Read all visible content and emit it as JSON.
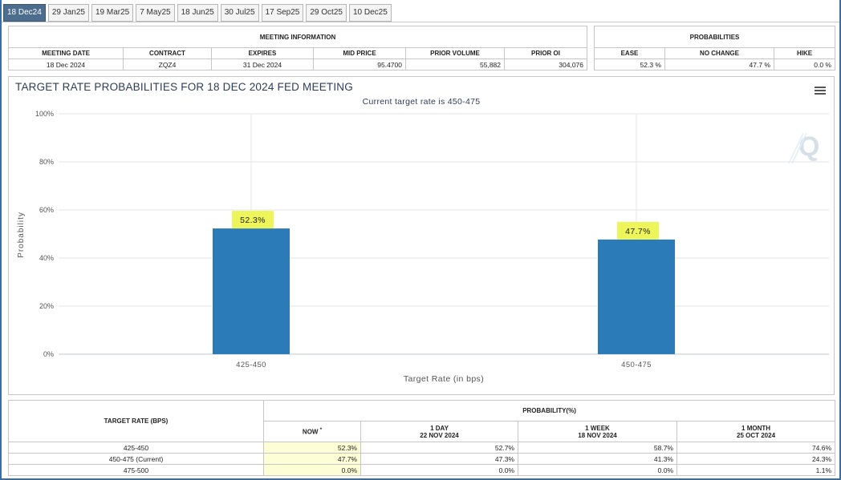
{
  "tabs": [
    "18 Dec24",
    "29 Jan25",
    "19 Mar25",
    "7 May25",
    "18 Jun25",
    "30 Jul25",
    "17 Sep25",
    "29 Oct25",
    "10 Dec25"
  ],
  "active_tab": 0,
  "meeting_info": {
    "header": "MEETING INFORMATION",
    "columns": [
      "MEETING DATE",
      "CONTRACT",
      "EXPIRES",
      "MID PRICE",
      "PRIOR VOLUME",
      "PRIOR OI"
    ],
    "values": [
      "18 Dec 2024",
      "ZQZ4",
      "31 Dec 2024",
      "95.4700",
      "55,882",
      "304,076"
    ]
  },
  "probabilities": {
    "header": "PROBABILITIES",
    "columns": [
      "EASE",
      "NO CHANGE",
      "HIKE"
    ],
    "values": [
      "52.3 %",
      "47.7 %",
      "0.0 %"
    ]
  },
  "chart_data": {
    "type": "bar",
    "title": "TARGET RATE PROBABILITIES FOR 18 DEC 2024 FED MEETING",
    "subtitle": "Current target rate is 450-475",
    "categories": [
      "425-450",
      "450-475"
    ],
    "values": [
      52.3,
      47.7
    ],
    "data_labels": [
      "52.3%",
      "47.7%"
    ],
    "xlabel": "Target Rate (in bps)",
    "ylabel": "Probability",
    "ylim": [
      0,
      100
    ],
    "yticks": [
      0,
      20,
      40,
      60,
      80,
      100
    ],
    "ytick_labels": [
      "0%",
      "20%",
      "40%",
      "60%",
      "80%",
      "100%"
    ],
    "grid": true,
    "bar_color": "#2b7bb9",
    "label_bg": "#eef55a"
  },
  "prob_table": {
    "rate_header": "TARGET RATE (BPS)",
    "prob_header": "PROBABILITY(%)",
    "now_label": "NOW",
    "now_mark": "*",
    "periods": [
      {
        "label": "1 DAY",
        "date": "22 NOV 2024"
      },
      {
        "label": "1 WEEK",
        "date": "18 NOV 2024"
      },
      {
        "label": "1 MONTH",
        "date": "25 OCT 2024"
      }
    ],
    "rows": [
      {
        "rate": "425-450",
        "now": "52.3%",
        "d1": "52.7%",
        "w1": "58.7%",
        "m1": "74.6%"
      },
      {
        "rate": "450-475 (Current)",
        "now": "47.7%",
        "d1": "47.3%",
        "w1": "41.3%",
        "m1": "24.3%"
      },
      {
        "rate": "475-500",
        "now": "0.0%",
        "d1": "0.0%",
        "w1": "0.0%",
        "m1": "1.1%"
      }
    ]
  }
}
